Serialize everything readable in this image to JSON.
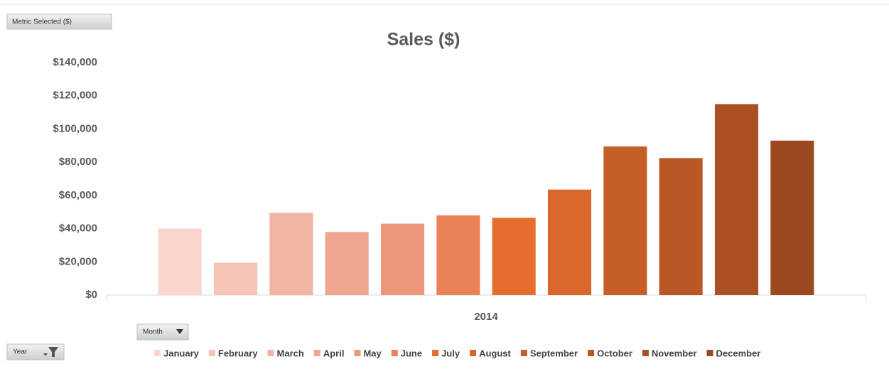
{
  "chart_data": {
    "type": "bar",
    "title": "Sales ($)",
    "buttons": {
      "metric": "Metric Selected ($)",
      "month": "Month",
      "year": "Year"
    },
    "categories": [
      "2014"
    ],
    "series": [
      {
        "name": "January",
        "color": "#f9d5cb",
        "values": [
          40000
        ]
      },
      {
        "name": "February",
        "color": "#f5c4b6",
        "values": [
          19500
        ]
      },
      {
        "name": "March",
        "color": "#f2b5a4",
        "values": [
          49500
        ]
      },
      {
        "name": "April",
        "color": "#efa68f",
        "values": [
          38000
        ]
      },
      {
        "name": "May",
        "color": "#ec977b",
        "values": [
          43000
        ]
      },
      {
        "name": "June",
        "color": "#ea8257",
        "values": [
          48000
        ]
      },
      {
        "name": "July",
        "color": "#e56d2e",
        "values": [
          46500
        ]
      },
      {
        "name": "August",
        "color": "#d9662a",
        "values": [
          63500
        ]
      },
      {
        "name": "September",
        "color": "#c75e27",
        "values": [
          89500
        ]
      },
      {
        "name": "October",
        "color": "#b95826",
        "values": [
          82500
        ]
      },
      {
        "name": "November",
        "color": "#ab5023",
        "values": [
          115000
        ]
      },
      {
        "name": "December",
        "color": "#9c4820",
        "values": [
          93000
        ]
      }
    ],
    "ylim": [
      0,
      140000
    ],
    "yticks": [
      {
        "value": 0,
        "label": "$0"
      },
      {
        "value": 20000,
        "label": "$20,000"
      },
      {
        "value": 40000,
        "label": "$40,000"
      },
      {
        "value": 60000,
        "label": "$60,000"
      },
      {
        "value": 80000,
        "label": "$80,000"
      },
      {
        "value": 100000,
        "label": "$100,000"
      },
      {
        "value": 120000,
        "label": "$120,000"
      },
      {
        "value": 140000,
        "label": "$140,000"
      }
    ],
    "grid": false,
    "legend": "bottom"
  }
}
